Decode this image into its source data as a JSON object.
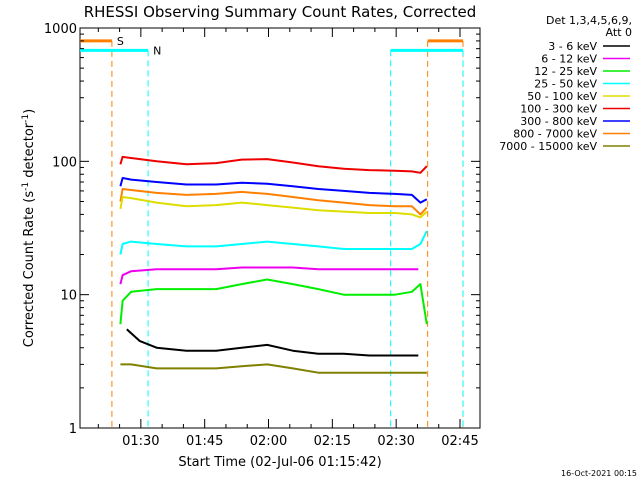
{
  "chart_data": {
    "type": "line",
    "title": "RHESSI Observing Summary Count Rates, Corrected",
    "xlabel": "Start Time (02-Jul-06 01:15:42)",
    "ylabel_main": "Corrected Count Rate (s",
    "ylabel_sup1": "-1",
    "ylabel_mid": " detector",
    "ylabel_sup2": "-1",
    "ylabel_end": ")",
    "x_unit": "minutes after 01:15:42",
    "xlim": [
      0,
      94
    ],
    "yscale": "log",
    "ylim": [
      1,
      1000
    ],
    "y_ticks": [
      {
        "value": 1,
        "label": "1"
      },
      {
        "value": 10,
        "label": "10"
      },
      {
        "value": 100,
        "label": "100"
      },
      {
        "value": 1000,
        "label": "1000"
      }
    ],
    "x_ticks": [
      {
        "value": 14.3,
        "label": "01:30"
      },
      {
        "value": 29.3,
        "label": "01:45"
      },
      {
        "value": 44.3,
        "label": "02:00"
      },
      {
        "value": 59.3,
        "label": "02:15"
      },
      {
        "value": 74.3,
        "label": "02:30"
      },
      {
        "value": 89.3,
        "label": "02:45"
      }
    ],
    "legend": {
      "placement": "right",
      "header1": "Det 1,3,4,5,6,9,",
      "header2": "Att 0",
      "entries": [
        {
          "label": "3 - 6 keV",
          "color": "#000000"
        },
        {
          "label": "6 - 12 keV",
          "color": "#ee00ee"
        },
        {
          "label": "12 - 25 keV",
          "color": "#00ee00"
        },
        {
          "label": "25 - 50 keV",
          "color": "#00ffff"
        },
        {
          "label": "50 - 100 keV",
          "color": "#dddd00"
        },
        {
          "label": "100 - 300 keV",
          "color": "#ee0000"
        },
        {
          "label": "300 - 800 keV",
          "color": "#0000ff"
        },
        {
          "label": "800 - 7000 keV",
          "color": "#ff8000"
        },
        {
          "label": "7000 - 15000 keV",
          "color": "#808000"
        }
      ]
    },
    "flags": {
      "saa_label": "S",
      "saa_color": "#ff8000",
      "saa_flag_level": 800,
      "saa_intervals": [
        [
          0,
          7.5
        ],
        [
          81.7,
          90
        ]
      ],
      "night_label": "N",
      "night_color": "#00ffff",
      "night_flag_level": 680,
      "night_intervals": [
        [
          0,
          16
        ],
        [
          73,
          90
        ]
      ]
    },
    "series": [
      {
        "color": "#ee0000",
        "x": [
          9.5,
          10,
          12,
          18,
          25,
          32,
          38,
          44,
          50,
          56,
          62,
          68,
          74,
          78,
          80,
          81.5
        ],
        "y": [
          95,
          108,
          106,
          100,
          95,
          97,
          103,
          104,
          98,
          92,
          88,
          86,
          85,
          84,
          82,
          92
        ]
      },
      {
        "color": "#0000ff",
        "x": [
          9.5,
          10,
          12,
          18,
          25,
          32,
          38,
          44,
          50,
          56,
          62,
          68,
          74,
          78,
          80,
          81.5
        ],
        "y": [
          65,
          75,
          73,
          70,
          67,
          67,
          69,
          68,
          65,
          62,
          60,
          58,
          57,
          56,
          49,
          52
        ]
      },
      {
        "color": "#ff8000",
        "x": [
          9.5,
          10,
          12,
          18,
          25,
          32,
          38,
          44,
          50,
          56,
          62,
          68,
          74,
          78,
          80,
          81.5
        ],
        "y": [
          50,
          62,
          61,
          58,
          56,
          57,
          59,
          57,
          54,
          51,
          49,
          47,
          46,
          46,
          40,
          45
        ]
      },
      {
        "color": "#dddd00",
        "x": [
          9.5,
          10,
          12,
          18,
          25,
          32,
          38,
          44,
          50,
          56,
          62,
          68,
          74,
          78,
          80,
          81.5
        ],
        "y": [
          44,
          54,
          53,
          49,
          46,
          47,
          49,
          47,
          45,
          43,
          42,
          41,
          41,
          40,
          38,
          42
        ]
      },
      {
        "color": "#00ffff",
        "x": [
          9.5,
          10,
          12,
          18,
          25,
          32,
          38,
          44,
          50,
          56,
          62,
          68,
          74,
          78,
          80,
          81.5
        ],
        "y": [
          20,
          24,
          25,
          24,
          23,
          23,
          24,
          25,
          24,
          23,
          22,
          22,
          22,
          22,
          24,
          30
        ]
      },
      {
        "color": "#ee00ee",
        "x": [
          9.5,
          10,
          12,
          18,
          25,
          32,
          38,
          44,
          50,
          56,
          62,
          68,
          74,
          78,
          79.5
        ],
        "y": [
          12,
          14,
          15,
          15.5,
          15.5,
          15.5,
          16,
          16,
          16,
          15.5,
          15.5,
          15.5,
          15.5,
          15.5,
          15.5
        ]
      },
      {
        "color": "#00ee00",
        "x": [
          9.5,
          10,
          12,
          18,
          25,
          32,
          38,
          44,
          50,
          56,
          62,
          68,
          74,
          78,
          80,
          81.5
        ],
        "y": [
          6,
          9,
          10.5,
          11,
          11,
          11,
          12,
          13,
          12,
          11,
          10,
          10,
          10,
          10.5,
          12,
          6
        ]
      },
      {
        "color": "#000000",
        "x": [
          11,
          14,
          18,
          25,
          32,
          38,
          44,
          50,
          56,
          62,
          68,
          74,
          78,
          79.5
        ],
        "y": [
          5.5,
          4.5,
          4,
          3.8,
          3.8,
          4,
          4.2,
          3.8,
          3.6,
          3.6,
          3.5,
          3.5,
          3.5,
          3.5
        ]
      },
      {
        "color": "#808000",
        "x": [
          9.5,
          12,
          18,
          25,
          32,
          38,
          44,
          50,
          56,
          62,
          68,
          74,
          78,
          80,
          81.5
        ],
        "y": [
          3,
          3,
          2.8,
          2.8,
          2.8,
          2.9,
          3,
          2.8,
          2.6,
          2.6,
          2.6,
          2.6,
          2.6,
          2.6,
          2.6
        ]
      }
    ]
  },
  "footer": {
    "timestamp": "16-Oct-2021 00:15"
  }
}
